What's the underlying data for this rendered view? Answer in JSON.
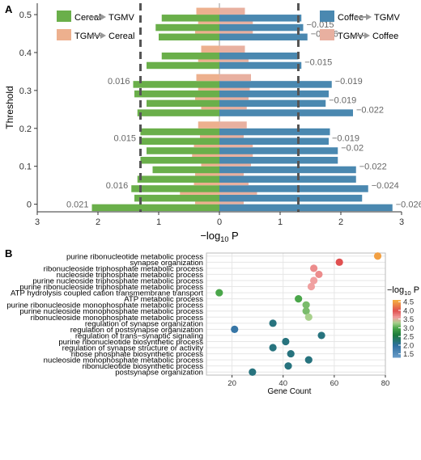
{
  "panels": {
    "a_label": "A",
    "b_label": "B"
  },
  "colors": {
    "cereal_to_tgmv": "#6aaf4a",
    "tgmv_to_cereal": "#edb08e",
    "coffee_to_tgmv": "#4a88b0",
    "tgmv_to_coffee": "#e8b0a0",
    "axis": "#333333",
    "threshold_line": "#555555",
    "grid": "#e6e6e6",
    "label_text": "#666666"
  },
  "chart_data": [
    {
      "type": "bar",
      "orientation": "horizontal",
      "ylabel": "Threshold",
      "xlabel_main": "−log",
      "xlabel_sub": "10",
      "xlabel_tail": " P",
      "xlim": [
        -3,
        3
      ],
      "xticks": [
        -3,
        -2,
        -1,
        0,
        1,
        2,
        3
      ],
      "xtick_labels": [
        "3",
        "2",
        "1",
        "0",
        "1",
        "2",
        "3"
      ],
      "ylim": [
        -0.02,
        0.53
      ],
      "yticks": [
        0,
        0.1,
        0.2,
        0.3,
        0.4,
        0.5
      ],
      "ytick_labels": [
        "0",
        "0.1",
        "0.2",
        "0.3",
        "0.4",
        "0.5"
      ],
      "threshold_lines": [
        -1.3,
        1.3
      ],
      "legend": {
        "left": [
          {
            "from": "Cereal",
            "to": "TGMV",
            "color_key": "cereal_to_tgmv"
          },
          {
            "from": "TGMV",
            "to": "Cereal",
            "color_key": "tgmv_to_cereal"
          }
        ],
        "right": [
          {
            "from": "Coffee",
            "to": "TGMV",
            "color_key": "coffee_to_tgmv"
          },
          {
            "from": "TGMV",
            "to": "Coffee",
            "color_key": "tgmv_to_coffee"
          }
        ]
      },
      "rows": [
        {
          "threshold": 0.0,
          "cereal_to_tgmv": 2.1,
          "tgmv_to_cereal": 0.4,
          "coffee_to_tgmv": 2.85,
          "tgmv_to_coffee": 0.4,
          "left_label": "0.021",
          "right_label": "−0.026"
        },
        {
          "threshold": 0.025,
          "cereal_to_tgmv": 1.4,
          "tgmv_to_cereal": 0.65,
          "coffee_to_tgmv": 2.35,
          "tgmv_to_coffee": 0.62,
          "left_label": "",
          "right_label": ""
        },
        {
          "threshold": 0.05,
          "cereal_to_tgmv": 1.45,
          "tgmv_to_cereal": 0.42,
          "coffee_to_tgmv": 2.45,
          "tgmv_to_coffee": 0.48,
          "left_label": "0.016",
          "right_label": "−0.024"
        },
        {
          "threshold": 0.075,
          "cereal_to_tgmv": 1.35,
          "tgmv_to_cereal": 0.4,
          "coffee_to_tgmv": 2.25,
          "tgmv_to_coffee": 0.4,
          "left_label": "",
          "right_label": ""
        },
        {
          "threshold": 0.1,
          "cereal_to_tgmv": 1.1,
          "tgmv_to_cereal": 0.3,
          "coffee_to_tgmv": 2.25,
          "tgmv_to_coffee": 0.52,
          "left_label": "",
          "right_label": "−0.022"
        },
        {
          "threshold": 0.125,
          "cereal_to_tgmv": 1.3,
          "tgmv_to_cereal": 0.45,
          "coffee_to_tgmv": 1.95,
          "tgmv_to_coffee": 0.55,
          "left_label": "",
          "right_label": ""
        },
        {
          "threshold": 0.15,
          "cereal_to_tgmv": 1.2,
          "tgmv_to_cereal": 0.42,
          "coffee_to_tgmv": 1.95,
          "tgmv_to_coffee": 0.55,
          "left_label": "",
          "right_label": "−0.02"
        },
        {
          "threshold": 0.175,
          "cereal_to_tgmv": 1.32,
          "tgmv_to_cereal": 0.32,
          "coffee_to_tgmv": 1.8,
          "tgmv_to_coffee": 0.4,
          "left_label": "0.015",
          "right_label": "−0.019"
        },
        {
          "threshold": 0.2,
          "cereal_to_tgmv": 1.3,
          "tgmv_to_cereal": 0.35,
          "coffee_to_tgmv": 1.82,
          "tgmv_to_coffee": 0.45,
          "left_label": "",
          "right_label": ""
        },
        {
          "threshold": 0.25,
          "cereal_to_tgmv": 1.35,
          "tgmv_to_cereal": 0.3,
          "coffee_to_tgmv": 2.2,
          "tgmv_to_coffee": 0.45,
          "left_label": "",
          "right_label": "−0.022"
        },
        {
          "threshold": 0.275,
          "cereal_to_tgmv": 1.2,
          "tgmv_to_cereal": 0.4,
          "coffee_to_tgmv": 1.75,
          "tgmv_to_coffee": 0.48,
          "left_label": "",
          "right_label": "−0.019"
        },
        {
          "threshold": 0.3,
          "cereal_to_tgmv": 1.4,
          "tgmv_to_cereal": 0.35,
          "coffee_to_tgmv": 1.8,
          "tgmv_to_coffee": 0.5,
          "left_label": "",
          "right_label": ""
        },
        {
          "threshold": 0.325,
          "cereal_to_tgmv": 1.42,
          "tgmv_to_cereal": 0.38,
          "coffee_to_tgmv": 1.85,
          "tgmv_to_coffee": 0.52,
          "left_label": "0.016",
          "right_label": "−0.019"
        },
        {
          "threshold": 0.375,
          "cereal_to_tgmv": 1.2,
          "tgmv_to_cereal": 0.35,
          "coffee_to_tgmv": 1.35,
          "tgmv_to_coffee": 0.48,
          "left_label": "",
          "right_label": "−0.015"
        },
        {
          "threshold": 0.4,
          "cereal_to_tgmv": 0.95,
          "tgmv_to_cereal": 0.3,
          "coffee_to_tgmv": 1.3,
          "tgmv_to_coffee": 0.42,
          "left_label": "",
          "right_label": ""
        },
        {
          "threshold": 0.45,
          "cereal_to_tgmv": 1.0,
          "tgmv_to_cereal": 0.4,
          "coffee_to_tgmv": 1.45,
          "tgmv_to_coffee": 0.55,
          "left_label": "",
          "right_label": "−0.016"
        },
        {
          "threshold": 0.475,
          "cereal_to_tgmv": 1.05,
          "tgmv_to_cereal": 0.35,
          "coffee_to_tgmv": 1.38,
          "tgmv_to_coffee": 0.55,
          "left_label": "",
          "right_label": "−0.015"
        },
        {
          "threshold": 0.5,
          "cereal_to_tgmv": 0.95,
          "tgmv_to_cereal": 0.38,
          "coffee_to_tgmv": 1.35,
          "tgmv_to_coffee": 0.42,
          "left_label": "",
          "right_label": ""
        }
      ]
    },
    {
      "type": "scatter",
      "xlabel": "Gene Count",
      "xlim": [
        10,
        80
      ],
      "xticks": [
        20,
        40,
        60,
        80
      ],
      "color_scale": {
        "title_main": "−log",
        "title_sub": "10",
        "title_tail": " P",
        "min": 1.3,
        "max": 4.6,
        "ticks": [
          1.5,
          2.0,
          2.5,
          3.0,
          3.5,
          4.0,
          4.5
        ],
        "tick_labels": [
          "1.5",
          "2.0",
          "2.5",
          "3.0",
          "3.5",
          "4.0",
          "4.5"
        ],
        "stops": [
          {
            "value": 1.3,
            "color": "#6a9dc9"
          },
          {
            "value": 2.0,
            "color": "#2e6fa0"
          },
          {
            "value": 2.6,
            "color": "#1a7a3a"
          },
          {
            "value": 3.0,
            "color": "#4aa64a"
          },
          {
            "value": 3.3,
            "color": "#a8d08c"
          },
          {
            "value": 3.6,
            "color": "#f0a0a0"
          },
          {
            "value": 4.0,
            "color": "#e05050"
          },
          {
            "value": 4.6,
            "color": "#f5b040"
          }
        ]
      },
      "points": [
        {
          "term": "purine ribonucleotide metabolic process",
          "count": 77,
          "neglogp": 4.5
        },
        {
          "term": "synapse organization",
          "count": 62,
          "neglogp": 4.0
        },
        {
          "term": "ribonucleoside triphosphate metabolic process",
          "count": 52,
          "neglogp": 3.7
        },
        {
          "term": "nucleoside triphosphate metabolic process",
          "count": 54,
          "neglogp": 3.7
        },
        {
          "term": "purine nucleoside triphosphate metabolic process",
          "count": 52,
          "neglogp": 3.6
        },
        {
          "term": "purine ribonucleoside triphosphate metabolic process",
          "count": 51,
          "neglogp": 3.6
        },
        {
          "term": "ATP hydrolysis coupled cation transmembrane transport",
          "count": 15,
          "neglogp": 3.0
        },
        {
          "term": "ATP metabolic process",
          "count": 46,
          "neglogp": 3.0
        },
        {
          "term": "purine ribonucleoside monophosphate metabolic process",
          "count": 49,
          "neglogp": 3.15
        },
        {
          "term": "purine nucleoside monophosphate metabolic process",
          "count": 49,
          "neglogp": 3.15
        },
        {
          "term": "ribonucleoside monophosphate metabolic process",
          "count": 50,
          "neglogp": 3.3
        },
        {
          "term": "regulation of synapse organization",
          "count": 36,
          "neglogp": 2.2
        },
        {
          "term": "regulation of postsynapse organization",
          "count": 21,
          "neglogp": 1.9
        },
        {
          "term": "regulation of trans−synaptic signaling",
          "count": 55,
          "neglogp": 2.2
        },
        {
          "term": "purine ribonucleotide biosynthetic process",
          "count": 41,
          "neglogp": 2.2
        },
        {
          "term": "regulation of synapse structure or activity",
          "count": 36,
          "neglogp": 2.2
        },
        {
          "term": "ribose phosphate biosynthetic process",
          "count": 43,
          "neglogp": 2.2
        },
        {
          "term": "nucleoside monophosphate metabolic process",
          "count": 50,
          "neglogp": 2.2
        },
        {
          "term": "ribonucleotide biosynthetic process",
          "count": 42,
          "neglogp": 2.2
        },
        {
          "term": "postsynapse organization",
          "count": 28,
          "neglogp": 2.2
        }
      ]
    }
  ]
}
